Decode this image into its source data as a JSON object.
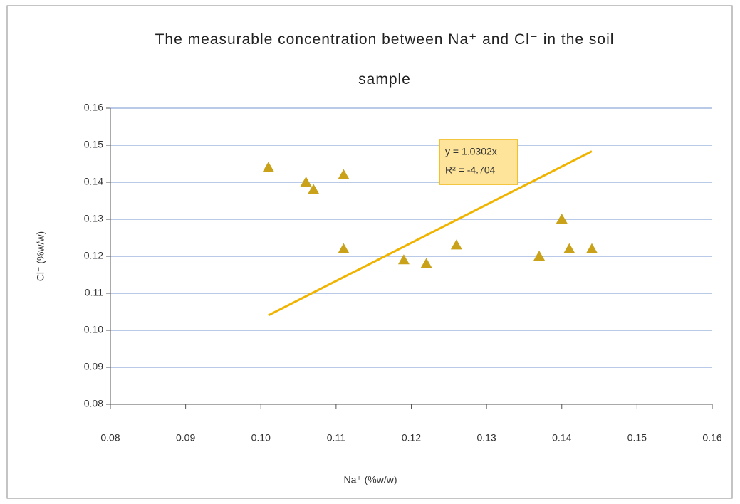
{
  "chart_data": {
    "type": "scatter",
    "title": "The measurable concentration between Na⁺ and Cl⁻ in the soil sample",
    "x_label": "Na⁺ (%w/w)",
    "y_label": "Cl⁻ (%w/w)",
    "x": [
      0.101,
      0.106,
      0.107,
      0.111,
      0.111,
      0.119,
      0.122,
      0.126,
      0.137,
      0.14,
      0.141,
      0.144
    ],
    "values": [
      0.144,
      0.14,
      0.138,
      0.142,
      0.122,
      0.119,
      0.118,
      0.123,
      0.12,
      0.13,
      0.122,
      0.122
    ],
    "color": "#c9a21a",
    "trendline": {
      "slope": 1.0302,
      "color": "#f0b400",
      "labels": [
        "y = 1.0302x",
        "R² = -4.704"
      ]
    },
    "xlim": [
      0.08,
      0.16
    ],
    "xticks": [
      0.08,
      0.09,
      {
        "value": 0.1,
        "label": "0.10"
      },
      0.11,
      0.12,
      0.13,
      0.14,
      0.15,
      0.16
    ],
    "ylim": [
      0.08,
      0.16
    ],
    "yticks": [
      0.08,
      0.09,
      {
        "value": 0.1,
        "label": "0.10"
      },
      0.11,
      0.12,
      0.13,
      0.14,
      0.15,
      0.16
    ],
    "grid": true,
    "grid_color": "#8faadc"
  }
}
